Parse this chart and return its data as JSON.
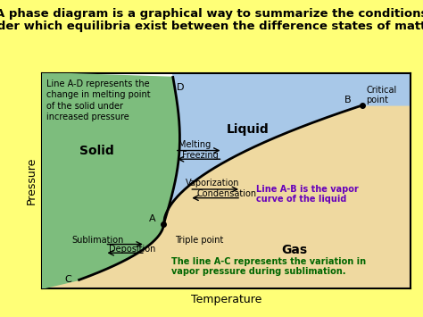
{
  "title_line1": "A phase diagram is a graphical way to summarize the conditions",
  "title_line2": "under which equilibria exist between the difference states of matter.",
  "title_fontsize": 9.5,
  "xlabel": "Temperature",
  "ylabel": "Pressure",
  "bg_color": "#FFFF77",
  "plot_bg": "#FFFFFF",
  "solid_color": "#7DBD7D",
  "liquid_color": "#A8C8E8",
  "gas_color": "#EFD9A0",
  "triple_point": [
    0.33,
    0.3
  ],
  "critical_point": [
    0.87,
    0.85
  ],
  "point_D": [
    0.355,
    0.98
  ],
  "point_C": [
    0.1,
    0.04
  ],
  "annotation_AD": "Line A-D represents the\nchange in melting point\nof the solid under\nincreased pressure",
  "annotation_AB": "Line A-B is the vapor\ncurve of the liquid",
  "annotation_AC": "The line A-C represents the variation in\nvapor pressure during sublimation.",
  "annotation_AB_color": "#6600BB",
  "annotation_AC_color": "#006600",
  "label_solid": "Solid",
  "label_liquid": "Liquid",
  "label_gas": "Gas",
  "label_melting": "Melting",
  "label_freezing": "Freezing",
  "label_vaporization": "Vaporization",
  "label_condensation": "Condensation",
  "label_sublimation": "Sublimation",
  "label_deposition": "Deposition",
  "label_triple": "Triple point",
  "label_critical": "Critical\npoint"
}
